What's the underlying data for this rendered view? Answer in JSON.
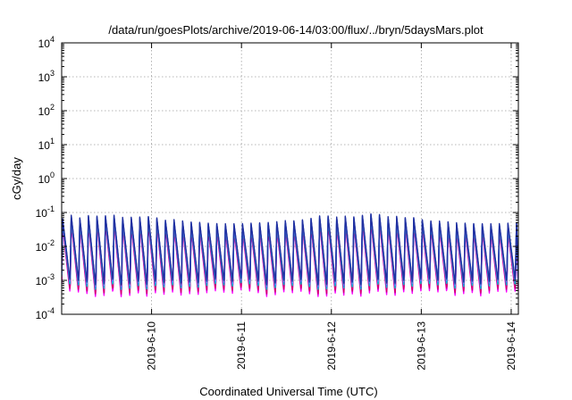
{
  "chart_data": {
    "type": "line",
    "title": "/data/run/goesPlots/archive/2019-06-14/03:00/flux/../bryn/5daysMars.plot",
    "xlabel": "Coordinated Universal Time (UTC)",
    "ylabel": "cGy/day",
    "yscale": "log",
    "ylim_exp": [
      -4,
      4
    ],
    "y_ticks": [
      {
        "base": "10",
        "exp": "4"
      },
      {
        "base": "10",
        "exp": "3"
      },
      {
        "base": "10",
        "exp": "2"
      },
      {
        "base": "10",
        "exp": "1"
      },
      {
        "base": "10",
        "exp": "0"
      },
      {
        "base": "10",
        "exp": "-1"
      },
      {
        "base": "10",
        "exp": "-2"
      },
      {
        "base": "10",
        "exp": "-3"
      },
      {
        "base": "10",
        "exp": "-4"
      }
    ],
    "xlim_days": [
      0,
      5.08
    ],
    "x_ticks": [
      {
        "label": "2019-6-10",
        "day": 1.0
      },
      {
        "label": "2019-6-11",
        "day": 2.0
      },
      {
        "label": "2019-6-12",
        "day": 3.0
      },
      {
        "label": "2019-6-13",
        "day": 4.0
      },
      {
        "label": "2019-6-14",
        "day": 5.0
      }
    ],
    "grid": true,
    "pattern": {
      "cycles_per_day": 10.5,
      "peak_log": -1.35,
      "peak_log_high": -1.05,
      "trough_log": -2.75,
      "trough_log_low": -3.15
    },
    "series": [
      {
        "color": "#ff00ff",
        "offset": -0.55
      },
      {
        "color": "#cc00cc",
        "offset": -0.45
      },
      {
        "color": "#d4006a",
        "offset": -0.4
      },
      {
        "color": "#00c8c8",
        "offset": -0.2
      },
      {
        "color": "#00a0ff",
        "offset": -0.1
      },
      {
        "color": "#8080ff",
        "offset": -0.05
      },
      {
        "color": "#4060c0",
        "offset": 0.0
      },
      {
        "color": "#2030a0",
        "offset": 0.05
      }
    ]
  }
}
